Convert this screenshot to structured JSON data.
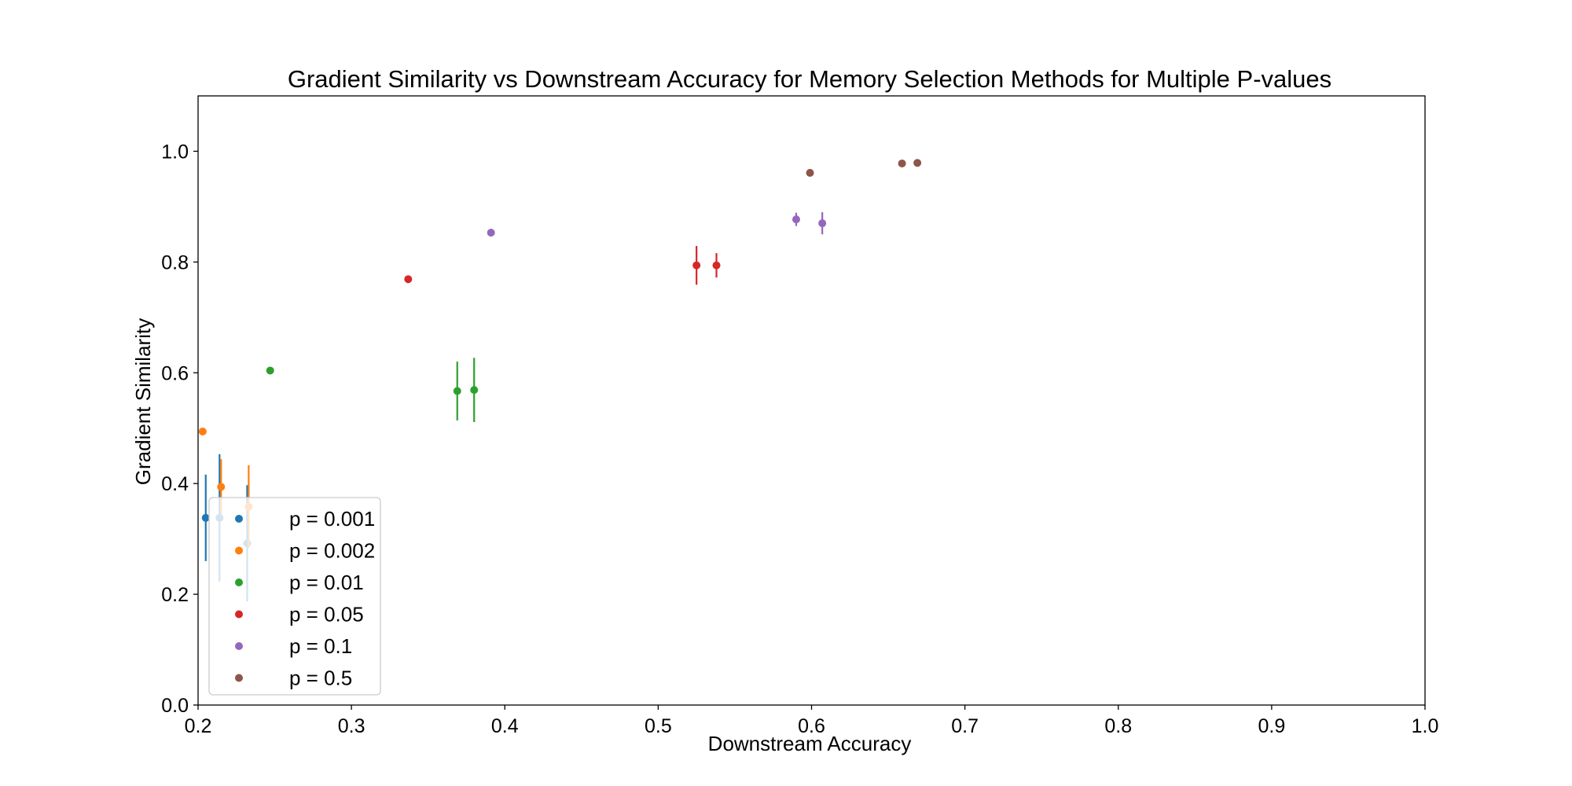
{
  "chart_data": {
    "type": "scatter",
    "title": "Gradient Similarity vs Downstream Accuracy for Memory Selection Methods for Multiple P-values",
    "xlabel": "Downstream Accuracy",
    "ylabel": "Gradient Similarity",
    "xlim": [
      0.2,
      1.0
    ],
    "ylim": [
      0.0,
      1.1
    ],
    "xticks": [
      "0.2",
      "0.3",
      "0.4",
      "0.5",
      "0.6",
      "0.7",
      "0.8",
      "0.9",
      "1.0"
    ],
    "yticks": [
      "0.0",
      "0.2",
      "0.4",
      "0.6",
      "0.8",
      "1.0"
    ],
    "grid": false,
    "legend_position": "lower-left",
    "series": [
      {
        "name": "p = 0.001",
        "color": "#1f77b4",
        "points": [
          {
            "x": 0.205,
            "y": 0.338,
            "err": 0.078
          },
          {
            "x": 0.214,
            "y": 0.338,
            "err": 0.115
          },
          {
            "x": 0.232,
            "y": 0.292,
            "err": 0.105
          }
        ]
      },
      {
        "name": "p = 0.002",
        "color": "#ff7f0e",
        "points": [
          {
            "x": 0.203,
            "y": 0.494,
            "err": 0.0
          },
          {
            "x": 0.215,
            "y": 0.394,
            "err": 0.05
          },
          {
            "x": 0.233,
            "y": 0.358,
            "err": 0.075
          }
        ]
      },
      {
        "name": "p = 0.01",
        "color": "#2ca02c",
        "points": [
          {
            "x": 0.247,
            "y": 0.604,
            "err": 0.0
          },
          {
            "x": 0.369,
            "y": 0.567,
            "err": 0.053
          },
          {
            "x": 0.38,
            "y": 0.569,
            "err": 0.058
          }
        ]
      },
      {
        "name": "p = 0.05",
        "color": "#d62728",
        "points": [
          {
            "x": 0.337,
            "y": 0.769,
            "err": 0.0
          },
          {
            "x": 0.525,
            "y": 0.794,
            "err": 0.035
          },
          {
            "x": 0.538,
            "y": 0.794,
            "err": 0.022
          }
        ]
      },
      {
        "name": "p = 0.1",
        "color": "#9467bd",
        "points": [
          {
            "x": 0.391,
            "y": 0.853,
            "err": 0.0
          },
          {
            "x": 0.59,
            "y": 0.877,
            "err": 0.012
          },
          {
            "x": 0.607,
            "y": 0.87,
            "err": 0.02
          }
        ]
      },
      {
        "name": "p = 0.5",
        "color": "#8c564b",
        "points": [
          {
            "x": 0.599,
            "y": 0.961,
            "err": 0.0
          },
          {
            "x": 0.659,
            "y": 0.978,
            "err": 0.0
          },
          {
            "x": 0.669,
            "y": 0.979,
            "err": 0.0
          }
        ]
      }
    ]
  }
}
